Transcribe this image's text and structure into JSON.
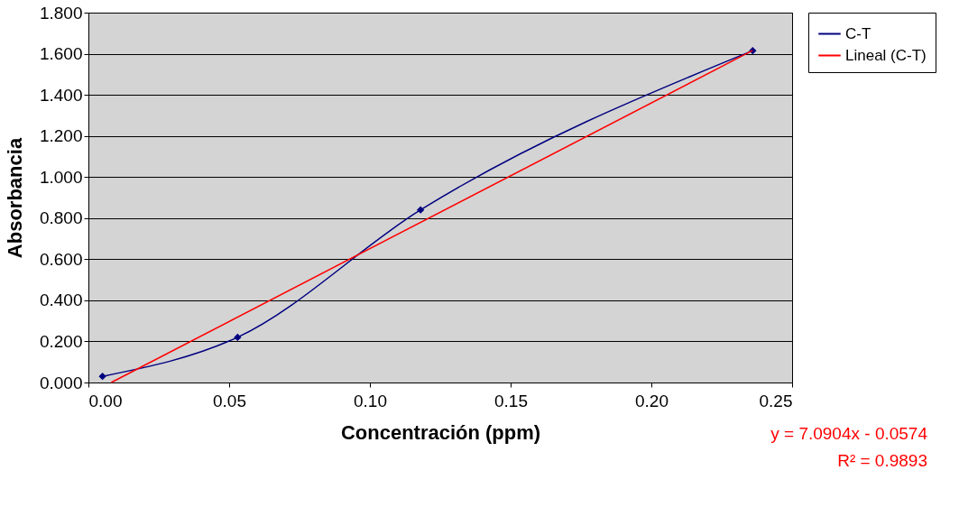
{
  "chart_data": {
    "type": "line",
    "xlabel": "Concentración (ppm)",
    "ylabel": "Absorbancia",
    "series": [
      {
        "name": "C-T",
        "color": "#000080",
        "x": [
          0.005,
          0.053,
          0.118,
          0.236
        ],
        "values": [
          0.03,
          0.22,
          0.84,
          1.615
        ],
        "marker": "diamond"
      },
      {
        "name": "Lineal (C-T)",
        "color": "#ff0000",
        "x": [
          0.0081,
          0.236
        ],
        "values": [
          0.0,
          1.616
        ],
        "marker": "none"
      }
    ],
    "xlim": [
      0,
      0.25
    ],
    "xticks": [
      {
        "value": 0,
        "label": "0.00"
      },
      {
        "value": 0.05,
        "label": "0.05"
      },
      {
        "value": 0.1,
        "label": "0.10"
      },
      {
        "value": 0.15,
        "label": "0.15"
      },
      {
        "value": 0.2,
        "label": "0.20"
      },
      {
        "value": 0.25,
        "label": "0.25"
      }
    ],
    "ylim": [
      0,
      1.8
    ],
    "yticks": [
      {
        "value": 0,
        "label": "0.000"
      },
      {
        "value": 0.2,
        "label": "0.200"
      },
      {
        "value": 0.4,
        "label": "0.400"
      },
      {
        "value": 0.6,
        "label": "0.600"
      },
      {
        "value": 0.8,
        "label": "0.800"
      },
      {
        "value": 1.0,
        "label": "1.000"
      },
      {
        "value": 1.2,
        "label": "1.200"
      },
      {
        "value": 1.4,
        "label": "1.400"
      },
      {
        "value": 1.6,
        "label": "1.600"
      },
      {
        "value": 1.8,
        "label": "1.800"
      }
    ],
    "grid": "y",
    "legend": "right",
    "annotations": [
      "y = 7.0904x - 0.0574",
      "R² = 0.9893"
    ]
  }
}
